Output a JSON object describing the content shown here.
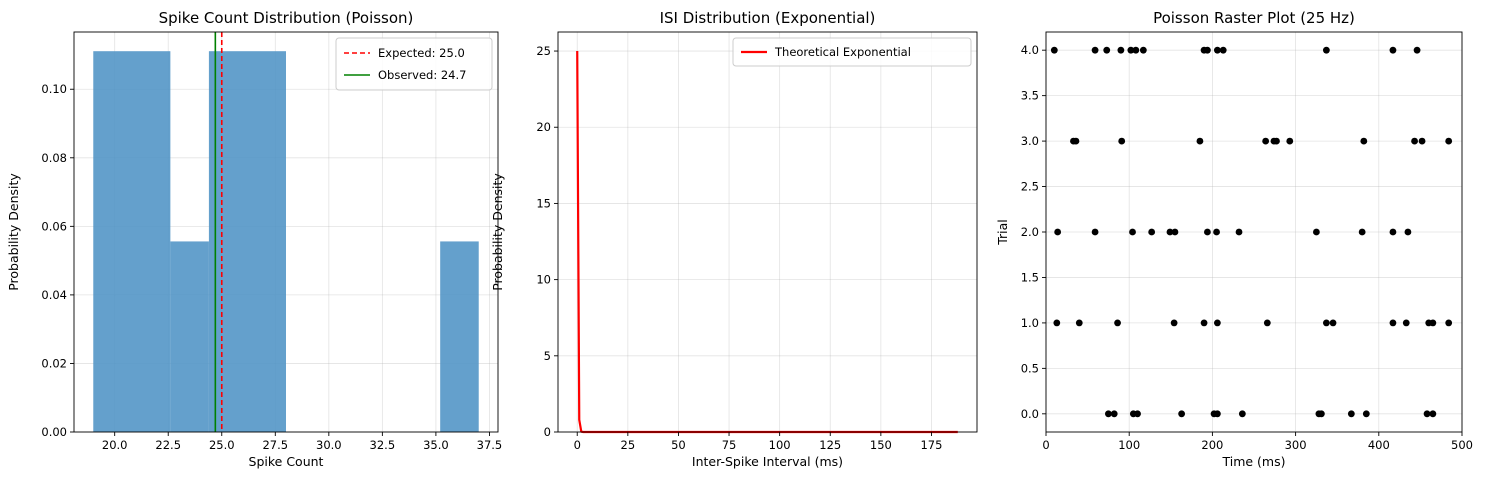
{
  "chart_data": [
    {
      "type": "bar",
      "title": "Spike Count Distribution (Poisson)",
      "xlabel": "Spike Count",
      "ylabel": "Probability Density",
      "xlim": [
        18.1,
        37.9
      ],
      "ylim": [
        0,
        0.1167
      ],
      "xticks": [
        20.0,
        22.5,
        25.0,
        27.5,
        30.0,
        32.5,
        35.0,
        37.5
      ],
      "xtick_labels": [
        "20.0",
        "22.5",
        "25.0",
        "27.5",
        "30.0",
        "32.5",
        "35.0",
        "37.5"
      ],
      "yticks": [
        0,
        0.02,
        0.04,
        0.06,
        0.08,
        0.1
      ],
      "ytick_labels": [
        "0.00",
        "0.02",
        "0.04",
        "0.06",
        "0.08",
        "0.10"
      ],
      "grid": true,
      "bar_color": "#4f93c5",
      "bins": [
        {
          "x0": 19.0,
          "x1": 22.6,
          "value": 0.1111
        },
        {
          "x0": 22.6,
          "x1": 24.4,
          "value": 0.0556
        },
        {
          "x0": 24.4,
          "x1": 28.0,
          "value": 0.1111
        },
        {
          "x0": 35.2,
          "x1": 37.0,
          "value": 0.0556
        }
      ],
      "vlines": [
        {
          "name": "Expected: 25.0",
          "x": 25.0,
          "color": "#ff0000",
          "style": "dashed"
        },
        {
          "name": "Observed: 24.7",
          "x": 24.7,
          "color": "#008000",
          "style": "solid"
        }
      ],
      "legend": "top-right"
    },
    {
      "type": "line",
      "title": "ISI Distribution (Exponential)",
      "xlabel": "Inter-Spike Interval (ms)",
      "ylabel": "Probability Density",
      "xlim": [
        -9.5,
        197.5
      ],
      "ylim": [
        0,
        26.25
      ],
      "xticks": [
        0,
        25,
        50,
        75,
        100,
        125,
        150,
        175
      ],
      "xtick_labels": [
        "0",
        "25",
        "50",
        "75",
        "100",
        "125",
        "150",
        "175"
      ],
      "yticks": [
        0,
        5,
        10,
        15,
        20,
        25
      ],
      "ytick_labels": [
        "0",
        "5",
        "10",
        "15",
        "20",
        "25"
      ],
      "grid": true,
      "series": [
        {
          "name": "Theoretical Exponential",
          "color": "#ff0000",
          "x": [
            0,
            1,
            2,
            3,
            5,
            10,
            188
          ],
          "y": [
            25,
            0.8,
            0.025,
            0.0008,
            0,
            0,
            0
          ]
        }
      ],
      "legend": "top-right"
    },
    {
      "type": "scatter",
      "title": "Poisson Raster Plot (25 Hz)",
      "xlabel": "Time (ms)",
      "ylabel": "Trial",
      "xlim": [
        0,
        500
      ],
      "ylim": [
        -0.2,
        4.2
      ],
      "xticks": [
        0,
        100,
        200,
        300,
        400,
        500
      ],
      "xtick_labels": [
        "0",
        "100",
        "200",
        "300",
        "400",
        "500"
      ],
      "yticks": [
        0,
        0.5,
        1.0,
        1.5,
        2.0,
        2.5,
        3.0,
        3.5,
        4.0
      ],
      "ytick_labels": [
        "0.0",
        "0.5",
        "1.0",
        "1.5",
        "2.0",
        "2.5",
        "3.0",
        "3.5",
        "4.0"
      ],
      "grid": true,
      "marker_color": "#000000",
      "trials": [
        {
          "trial": 0,
          "times": [
            75,
            82,
            105,
            110,
            163,
            202,
            206,
            236,
            328,
            331,
            367,
            385,
            458,
            465
          ]
        },
        {
          "trial": 1,
          "times": [
            13,
            40,
            86,
            154,
            190,
            206,
            266,
            337,
            345,
            417,
            433,
            460,
            465,
            484
          ]
        },
        {
          "trial": 2,
          "times": [
            14,
            59,
            104,
            127,
            149,
            155,
            194,
            205,
            232,
            325,
            380,
            417,
            435
          ]
        },
        {
          "trial": 3,
          "times": [
            33,
            36,
            91,
            185,
            264,
            274,
            277,
            293,
            382,
            443,
            452,
            484
          ]
        },
        {
          "trial": 4,
          "times": [
            10,
            59,
            73,
            90,
            102,
            108,
            117,
            190,
            194,
            206,
            213,
            337,
            417,
            446
          ]
        }
      ]
    }
  ]
}
